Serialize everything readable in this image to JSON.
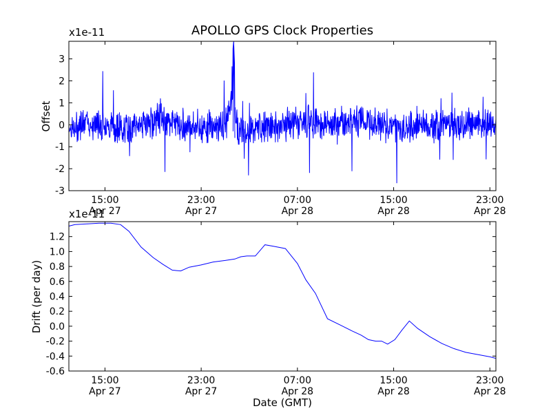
{
  "chart_data": [
    {
      "type": "line",
      "title": "APOLLO GPS Clock Properties",
      "ylabel": "Offset",
      "scale_label": "x1e-11",
      "ylim": [
        -3,
        3.8
      ],
      "y_ticks": [
        "-3",
        "-2",
        "-1",
        "0",
        "1",
        "2",
        "3"
      ],
      "x_ticks": [
        {
          "time": "15:00",
          "date": "Apr 27"
        },
        {
          "time": "23:00",
          "date": "Apr 27"
        },
        {
          "time": "07:00",
          "date": "Apr 28"
        },
        {
          "time": "15:00",
          "date": "Apr 28"
        },
        {
          "time": "23:00",
          "date": "Apr 28"
        }
      ],
      "xlim": [
        "Apr 27 12:00",
        "Apr 28 23:30"
      ],
      "color": "#0000ff",
      "series": [
        {
          "x_hours_from_Apr27_00": [
            12.0,
            12.5,
            13.0,
            14.0,
            15.0,
            16.0,
            17.0,
            18.0,
            19.0,
            19.5,
            20.0,
            21.0,
            22.0,
            23.0,
            24.0,
            25.0,
            25.7,
            26.0,
            27.0,
            28.0,
            29.0,
            30.0,
            31.0,
            32.0,
            33.0,
            34.0,
            35.0,
            36.0,
            37.0,
            38.0,
            39.0,
            40.0,
            41.0,
            42.0,
            43.0,
            44.0,
            45.0,
            46.0,
            47.0,
            47.5
          ],
          "values": [
            0.0,
            -0.8,
            0.2,
            0.1,
            0.1,
            -0.2,
            -0.4,
            0.2,
            0.3,
            0.9,
            0.4,
            0.1,
            0.0,
            -0.3,
            -0.1,
            -0.2,
            3.8,
            -0.5,
            -0.8,
            -0.4,
            -0.3,
            0.0,
            0.3,
            0.4,
            0.2,
            0.0,
            0.4,
            0.6,
            0.1,
            0.0,
            -0.3,
            -0.5,
            0.2,
            -0.4,
            0.3,
            0.0,
            0.1,
            0.2,
            0.1,
            0.0
          ]
        }
      ]
    },
    {
      "type": "line",
      "ylabel": "Drift (per day)",
      "xlabel": "Date (GMT)",
      "scale_label": "x1e-11",
      "ylim": [
        -0.6,
        1.4
      ],
      "y_ticks": [
        "-0.6",
        "-0.4",
        "-0.2",
        "0.0",
        "0.2",
        "0.4",
        "0.6",
        "0.8",
        "1.0",
        "1.2"
      ],
      "x_ticks": [
        {
          "time": "15:00",
          "date": "Apr 27"
        },
        {
          "time": "23:00",
          "date": "Apr 27"
        },
        {
          "time": "07:00",
          "date": "Apr 28"
        },
        {
          "time": "15:00",
          "date": "Apr 28"
        },
        {
          "time": "23:00",
          "date": "Apr 28"
        }
      ],
      "xlim": [
        "Apr 27 12:00",
        "Apr 28 23:30"
      ],
      "color": "#0000ff",
      "series": [
        {
          "x_hours_from_Apr27_00": [
            12.0,
            12.5,
            13.5,
            14.5,
            15.5,
            16.3,
            17.0,
            18.0,
            19.0,
            19.8,
            20.6,
            21.3,
            22.0,
            23.0,
            24.0,
            25.0,
            25.8,
            26.3,
            26.8,
            27.5,
            28.3,
            29.0,
            30.0,
            31.0,
            31.7,
            32.5,
            33.5,
            34.5,
            35.5,
            36.3,
            36.9,
            37.5,
            38.0,
            38.5,
            39.1,
            39.7,
            40.3,
            41.0,
            42.0,
            43.0,
            44.0,
            45.0,
            46.0,
            47.0,
            47.5
          ],
          "values": [
            1.34,
            1.36,
            1.37,
            1.38,
            1.38,
            1.36,
            1.27,
            1.06,
            0.92,
            0.83,
            0.75,
            0.74,
            0.79,
            0.82,
            0.86,
            0.88,
            0.9,
            0.93,
            0.94,
            0.94,
            1.09,
            1.07,
            1.04,
            0.84,
            0.62,
            0.44,
            0.1,
            0.02,
            -0.06,
            -0.12,
            -0.18,
            -0.2,
            -0.2,
            -0.24,
            -0.18,
            -0.05,
            0.07,
            -0.03,
            -0.14,
            -0.23,
            -0.3,
            -0.35,
            -0.38,
            -0.41,
            -0.43
          ]
        }
      ]
    }
  ]
}
